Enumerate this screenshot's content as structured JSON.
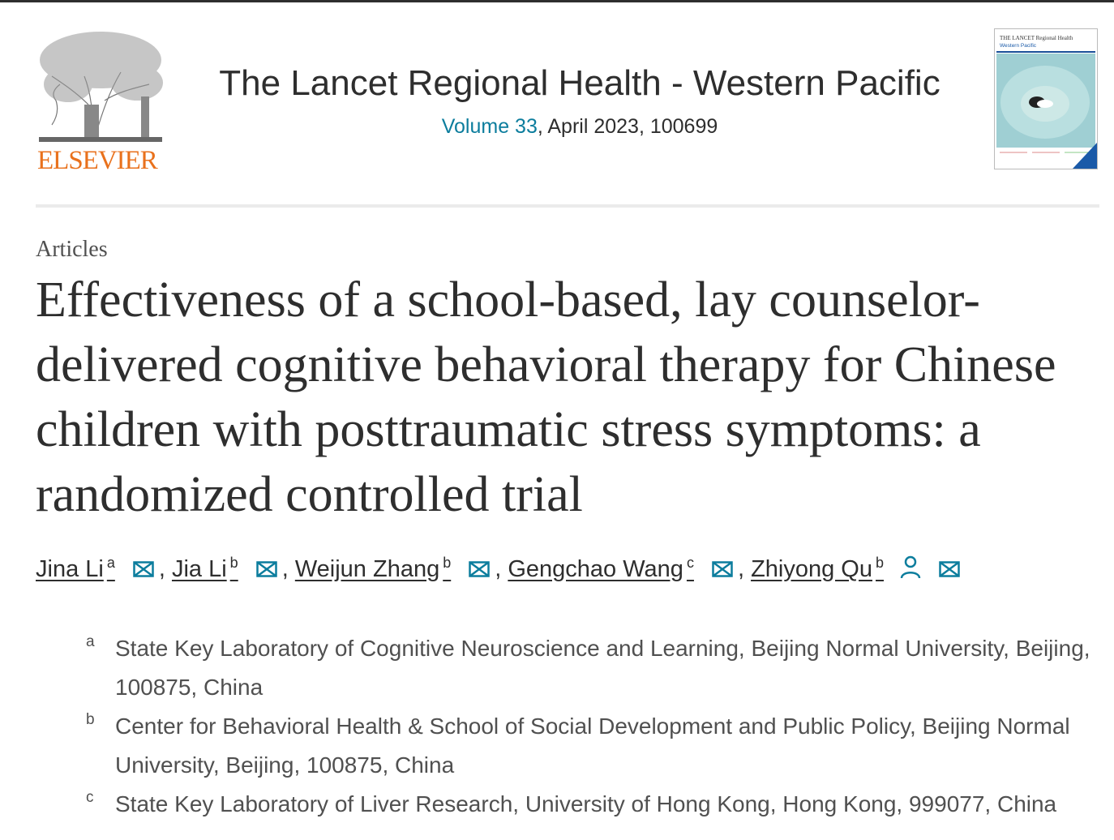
{
  "publisher": {
    "logo_text": "ELSEVIER",
    "color": "#e9711c"
  },
  "journal": {
    "title": "The Lancet Regional Health - Western Pacific",
    "volume_link": "Volume 33",
    "issue_info": ", April 2023, 100699",
    "link_color": "#0c7d9d",
    "cover": {
      "line1": "THE LANCET Regional Health",
      "line2": "Western Pacific"
    }
  },
  "article": {
    "section": "Articles",
    "title": "Effectiveness of a school-based, lay counselor-delivered cognitive behavioral therapy for Chinese children with posttraumatic stress symptoms: a randomized controlled trial",
    "authors": [
      {
        "name": "Jina Li",
        "sup": "a"
      },
      {
        "name": "Jia Li",
        "sup": "b"
      },
      {
        "name": "Weijun Zhang",
        "sup": "b"
      },
      {
        "name": "Gengchao Wang",
        "sup": "c"
      },
      {
        "name": "Zhiyong Qu",
        "sup": "b"
      }
    ],
    "separator": ",",
    "affiliations": [
      {
        "label": "a",
        "text": "State Key Laboratory of Cognitive Neuroscience and Learning, Beijing Normal University, Beijing, 100875, China"
      },
      {
        "label": "b",
        "text": "Center for Behavioral Health & School of Social Development and Public Policy, Beijing Normal University, Beijing, 100875, China"
      },
      {
        "label": "c",
        "text": "State Key Laboratory of Liver Research, University of Hong Kong, Hong Kong, 999077, China"
      }
    ]
  }
}
